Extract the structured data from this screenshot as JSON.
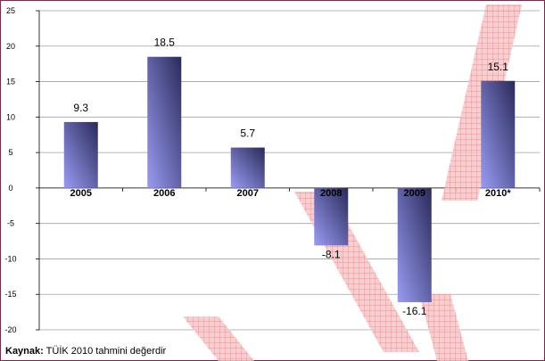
{
  "chart_data": {
    "type": "bar",
    "categories": [
      "2005",
      "2006",
      "2007",
      "2008",
      "2009",
      "2010*"
    ],
    "values": [
      9.3,
      18.5,
      5.7,
      -8.1,
      -16.1,
      15.1
    ],
    "data_labels": [
      "9.3",
      "18.5",
      "5.7",
      "-8.1",
      "-16.1",
      "15.1"
    ],
    "ylim": [
      -20,
      25
    ],
    "yticks": [
      -20,
      -15,
      -10,
      -5,
      0,
      5,
      10,
      15,
      20,
      25
    ],
    "grid": true,
    "legend": "none",
    "bar_gradient": [
      "#9a9cf4",
      "#2a2a5a"
    ],
    "title": "",
    "xlabel": "",
    "ylabel": ""
  },
  "footer": {
    "source_label": "Kaynak:",
    "source_text": "TÜİK 2010 tahmini değerdir"
  },
  "colors": {
    "frame": "#7a2a4a",
    "watermark": "#e8323c"
  }
}
